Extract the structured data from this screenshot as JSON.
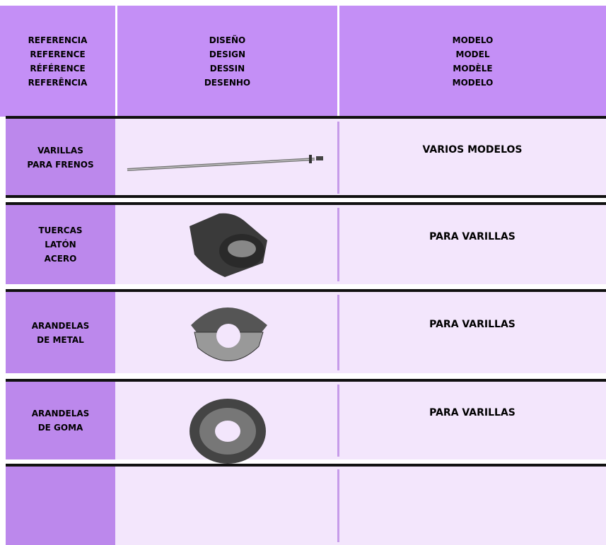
{
  "table": {
    "header": [
      [
        "REFERENCIA",
        "REFERENCE",
        "RÉFÉRENCE",
        "REFERÊNCIA"
      ],
      [
        "DISEÑO",
        "DESIGN",
        "DESSIN",
        "DESENHO"
      ],
      [
        "MODELO",
        "MODEL",
        "MODÈLE",
        "MODELO"
      ]
    ],
    "rows": [
      {
        "reference": [
          "VARILLAS",
          "PARA FRENOS"
        ],
        "model": "VARIOS MODELOS"
      },
      {
        "reference": [
          "TUERCAS",
          "LATÓN",
          "ACERO"
        ],
        "model": "PARA VARILLAS"
      },
      {
        "reference": [
          "ARANDELAS",
          "DE METAL"
        ],
        "model": "PARA VARILLAS"
      },
      {
        "reference": [
          "ARANDELAS",
          "DE GOMA"
        ],
        "model": "PARA VARILLAS"
      }
    ]
  }
}
